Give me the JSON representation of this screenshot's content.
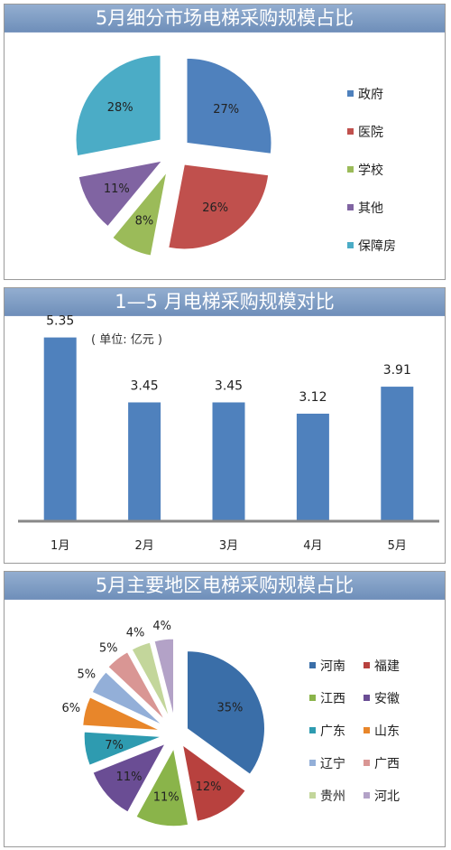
{
  "panel1": {
    "title": "5月细分市场电梯采购规模占比"
  },
  "panel2": {
    "title": "1—5 月电梯采购规模对比",
    "unit": "( 单位: 亿元 )"
  },
  "panel3": {
    "title": "5月主要地区电梯采购规模占比"
  },
  "chart_data": [
    {
      "type": "pie",
      "title": "5月细分市场电梯采购规模占比",
      "labels": [
        "政府",
        "医院",
        "学校",
        "其他",
        "保障房"
      ],
      "values": [
        27,
        26,
        8,
        11,
        28
      ],
      "value_labels": [
        "27%",
        "26%",
        "8%",
        "11%",
        "28%"
      ],
      "colors": [
        "#4f81bd",
        "#c0504d",
        "#9bbb59",
        "#8064a2",
        "#4bacc6"
      ],
      "legend": "right",
      "exploded": true
    },
    {
      "type": "bar",
      "title": "1—5 月电梯采购规模对比",
      "categories": [
        "1月",
        "2月",
        "3月",
        "4月",
        "5月"
      ],
      "values": [
        5.35,
        3.45,
        3.45,
        3.12,
        3.91
      ],
      "value_labels": [
        "5.35",
        "3.45",
        "3.45",
        "3.12",
        "3.91"
      ],
      "ylim": [
        0,
        6
      ],
      "color": "#4f81bd",
      "grid": false
    },
    {
      "type": "pie",
      "title": "5月主要地区电梯采购规模占比",
      "labels": [
        "河南",
        "福建",
        "江西",
        "安徽",
        "广东",
        "山东",
        "辽宁",
        "广西",
        "贵州",
        "河北"
      ],
      "values": [
        35,
        12,
        11,
        11,
        7,
        6,
        5,
        5,
        4,
        4
      ],
      "value_labels": [
        "35%",
        "12%",
        "11%",
        "11%",
        "7%",
        "6%",
        "5%",
        "5%",
        "4%",
        "4%"
      ],
      "colors": [
        "#3a6ea8",
        "#b8413e",
        "#8ab44a",
        "#6a4d94",
        "#2e9bb0",
        "#e8862a",
        "#93afd8",
        "#d99694",
        "#c3d69b",
        "#b3a2c7"
      ],
      "legend": "right",
      "exploded": true
    }
  ]
}
